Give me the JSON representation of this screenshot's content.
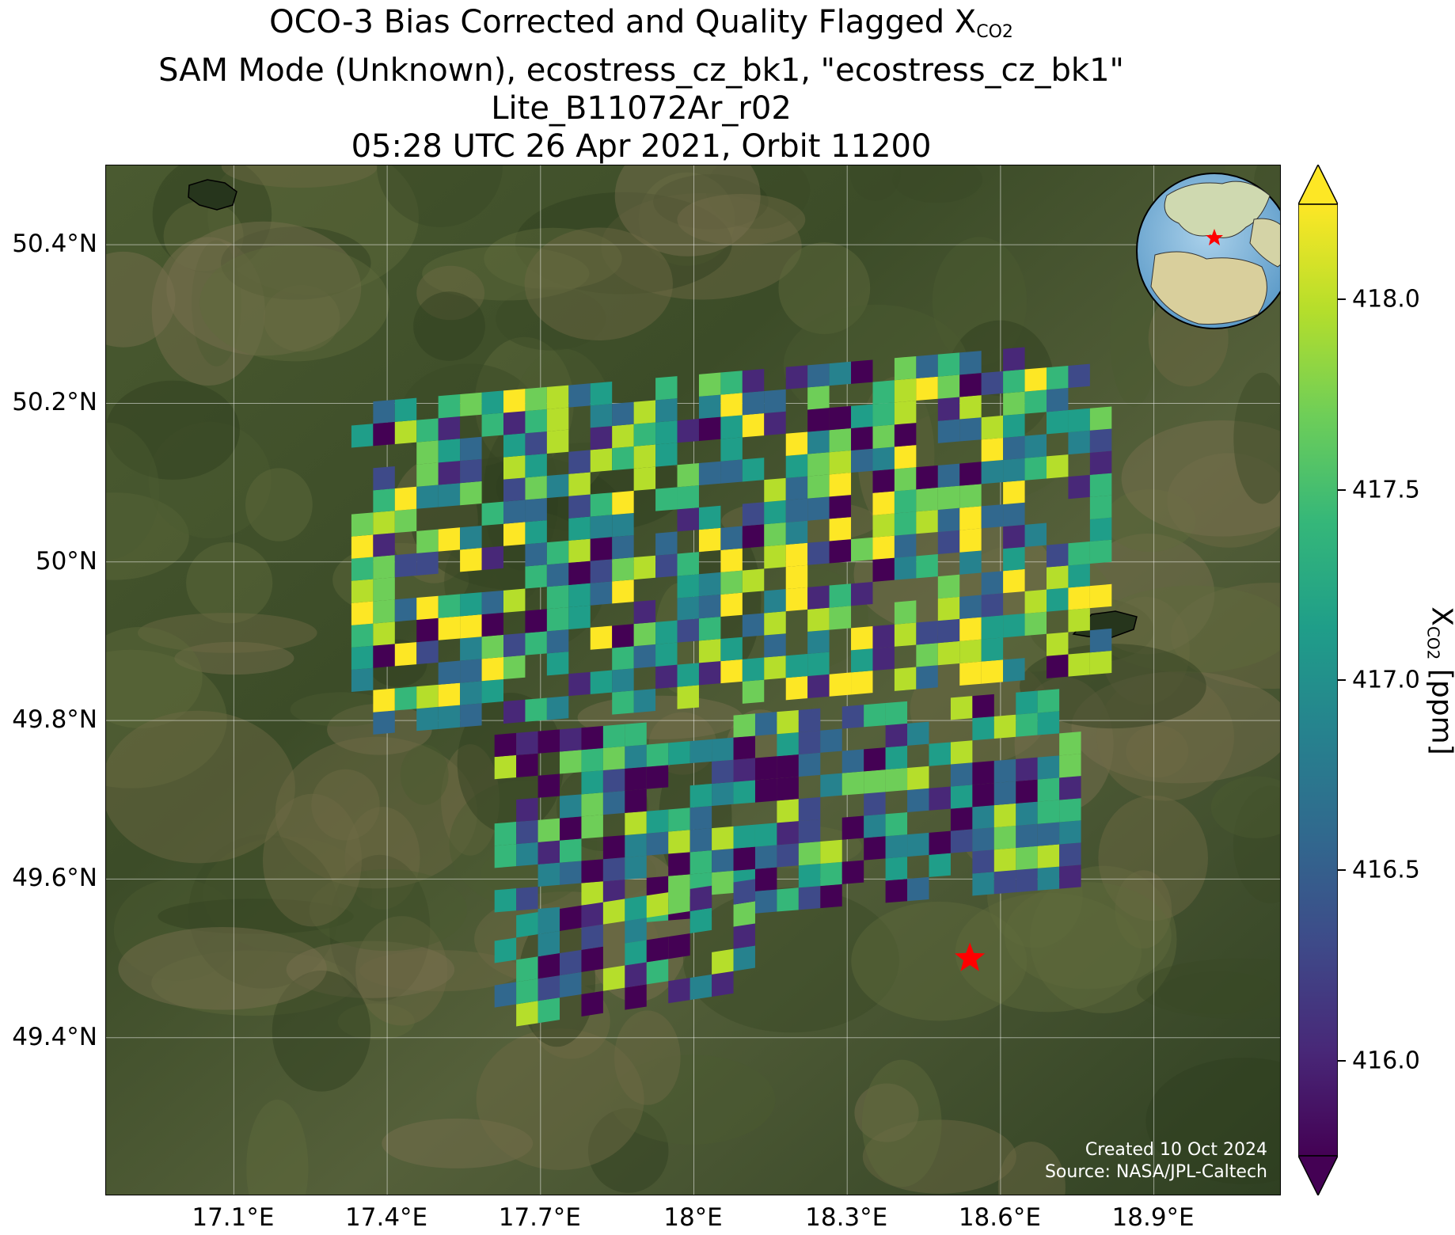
{
  "title": {
    "line1_prefix": "OCO-3 Bias Corrected and Quality Flagged X",
    "line1_sub": "CO2",
    "line2": "SAM Mode (Unknown), ecostress_cz_bk1, \"ecostress_cz_bk1\"",
    "line3": "Lite_B11072Ar_r02",
    "line4": "05:28 UTC 26 Apr 2021, Orbit 11200"
  },
  "map": {
    "lon_range": [
      16.85,
      19.15
    ],
    "lat_range": [
      49.2,
      50.5
    ],
    "x_ticks": [
      {
        "value": 17.1,
        "label": "17.1°E"
      },
      {
        "value": 17.4,
        "label": "17.4°E"
      },
      {
        "value": 17.7,
        "label": "17.7°E"
      },
      {
        "value": 18.0,
        "label": "18°E"
      },
      {
        "value": 18.3,
        "label": "18.3°E"
      },
      {
        "value": 18.6,
        "label": "18.6°E"
      },
      {
        "value": 18.9,
        "label": "18.9°E"
      }
    ],
    "y_ticks": [
      {
        "value": 49.4,
        "label": "49.4°N"
      },
      {
        "value": 49.6,
        "label": "49.6°N"
      },
      {
        "value": 49.8,
        "label": "49.8°N"
      },
      {
        "value": 50.0,
        "label": "50°N"
      },
      {
        "value": 50.2,
        "label": "50.2°N"
      },
      {
        "value": 50.4,
        "label": "50.4°N"
      }
    ],
    "grid": true,
    "target_marker": {
      "lon": 18.54,
      "lat": 49.5,
      "color": "#ff0000"
    },
    "inset_globe": "Europe with red star at target",
    "credit_line1": "Created 10 Oct 2024",
    "credit_line2": "Source: NASA/JPL-Caltech"
  },
  "colorbar": {
    "colormap": "viridis",
    "range": [
      415.75,
      418.25
    ],
    "ticks": [
      {
        "value": 416.0,
        "label": "416.0"
      },
      {
        "value": 416.5,
        "label": "416.5"
      },
      {
        "value": 417.0,
        "label": "417.0"
      },
      {
        "value": 417.5,
        "label": "417.5"
      },
      {
        "value": 418.0,
        "label": "418.0"
      }
    ],
    "label_prefix": "X",
    "label_sub": "CO2",
    "label_suffix": " [ppm]",
    "extend": "both"
  },
  "chart_data": {
    "type": "heatmap",
    "units": "ppm",
    "swaths": [
      {
        "lon": [
          17.33,
          18.83
        ],
        "lat": [
          49.78,
          50.21
        ],
        "tilt": 0.08,
        "seed": 11,
        "bias": 0.05
      },
      {
        "lon": [
          17.61,
          18.77
        ],
        "lat": [
          49.53,
          49.79
        ],
        "tilt": 0.06,
        "seed": 23,
        "bias": -0.35
      },
      {
        "lon": [
          17.61,
          18.12
        ],
        "lat": [
          49.41,
          49.56
        ],
        "tilt": 0.05,
        "seed": 37,
        "bias": -0.25
      }
    ]
  }
}
